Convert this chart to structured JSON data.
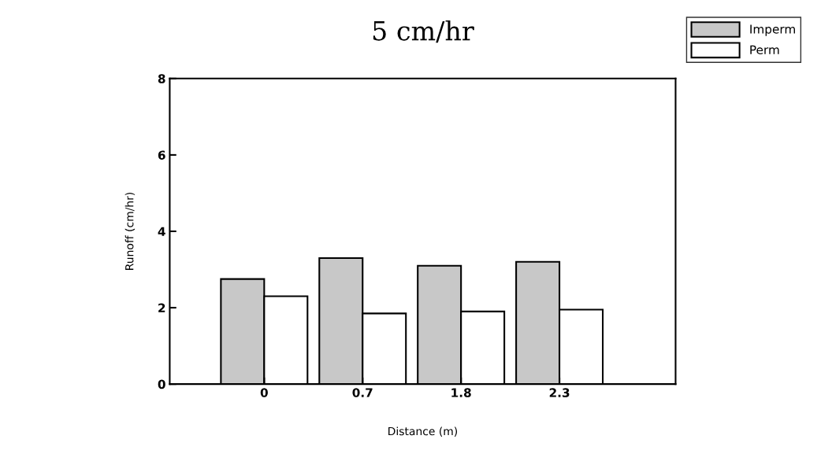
{
  "chart_data": {
    "type": "bar",
    "title": "5 cm/hr",
    "xlabel": "Distance (m)",
    "ylabel": "Runoff (cm/hr)",
    "categories": [
      "0",
      "0.7",
      "1.8",
      "2.3"
    ],
    "series": [
      {
        "name": "Imperm",
        "color": "#c8c8c8",
        "values": [
          2.75,
          3.3,
          3.1,
          3.2
        ]
      },
      {
        "name": "Perm",
        "color": "#ffffff",
        "values": [
          2.3,
          1.85,
          1.9,
          1.95
        ]
      }
    ],
    "ylim": [
      0,
      8
    ],
    "yticks": [
      0,
      2,
      4,
      6,
      8
    ],
    "grid": false,
    "legend": "top right"
  }
}
